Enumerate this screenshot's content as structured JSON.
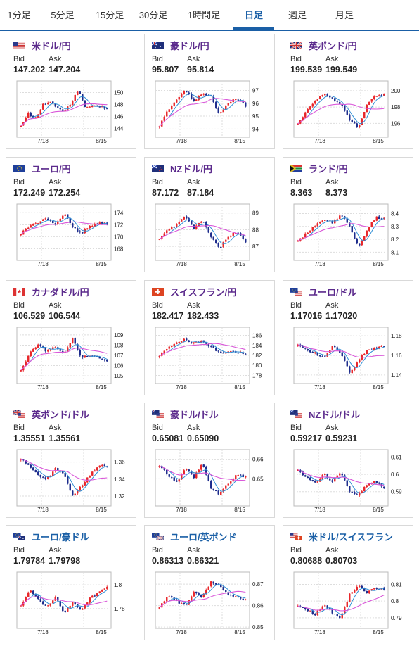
{
  "tabs": [
    {
      "label": "1分足",
      "active": false
    },
    {
      "label": "5分足",
      "active": false
    },
    {
      "label": "15分足",
      "active": false
    },
    {
      "label": "30分足",
      "active": false
    },
    {
      "label": "1時間足",
      "active": false
    },
    {
      "label": "日足",
      "active": true
    },
    {
      "label": "週足",
      "active": false
    },
    {
      "label": "月足",
      "active": false
    }
  ],
  "labels": {
    "bid": "Bid",
    "ask": "Ask"
  },
  "colors": {
    "up": "#e8262a",
    "down": "#1c2b8c",
    "ma_short": "#2f8fd6",
    "ma_long": "#d957d9",
    "accent": "#1a5fa6",
    "pair_purple": "#5b2a8c"
  },
  "pairs": [
    {
      "name": "米ドル/円",
      "flag": "flag-us",
      "bid": "147.202",
      "ask": "147.204",
      "y_ticks": [
        "150",
        "148",
        "146",
        "144"
      ],
      "x_ticks": [
        "7/18",
        "8/15"
      ],
      "chart_data": {
        "type": "line",
        "series": [
          {
            "values": [
              144.4,
              146.5,
              145.6,
              147.9,
              148.5,
              147.6,
              146.9,
              148.1,
              150.6,
              147.3,
              148.0,
              147.7,
              147.2
            ]
          }
        ],
        "ylim": [
          143.5,
          151
        ]
      }
    },
    {
      "name": "豪ドル/円",
      "flag": "flag-au",
      "bid": "95.807",
      "ask": "95.814",
      "y_ticks": [
        "97",
        "96",
        "95",
        "94"
      ],
      "x_ticks": [
        "7/18",
        "8/15"
      ],
      "chart_data": {
        "type": "line",
        "series": [
          {
            "values": [
              94.2,
              95.5,
              96.3,
              97.0,
              96.2,
              96.8,
              96.5,
              95.1,
              96.0,
              96.4,
              95.8
            ]
          }
        ],
        "ylim": [
          93.8,
          97.3
        ]
      }
    },
    {
      "name": "英ポンド/円",
      "flag": "flag-gb",
      "bid": "199.539",
      "ask": "199.549",
      "y_ticks": [
        "200",
        "198",
        "196"
      ],
      "x_ticks": [
        "7/18",
        "8/15"
      ],
      "chart_data": {
        "type": "line",
        "series": [
          {
            "values": [
              196.0,
              197.5,
              198.8,
              199.7,
              199.0,
              198.4,
              196.5,
              195.5,
              198.2,
              199.4,
              199.5
            ]
          }
        ],
        "ylim": [
          195,
          200.5
        ]
      }
    },
    {
      "name": "ユーロ/円",
      "flag": "flag-eu",
      "bid": "172.249",
      "ask": "172.254",
      "y_ticks": [
        "174",
        "172",
        "170",
        "168"
      ],
      "x_ticks": [
        "7/18",
        "8/15"
      ],
      "chart_data": {
        "type": "line",
        "series": [
          {
            "values": [
              170.5,
              171.8,
              172.4,
              173.0,
              172.2,
              173.9,
              171.5,
              170.6,
              171.8,
              172.3,
              172.2
            ]
          }
        ],
        "ylim": [
          167,
          174.5
        ]
      }
    },
    {
      "name": "NZドル/円",
      "flag": "flag-nz",
      "bid": "87.172",
      "ask": "87.184",
      "y_ticks": [
        "89",
        "88",
        "87"
      ],
      "x_ticks": [
        "7/18",
        "8/15"
      ],
      "chart_data": {
        "type": "line",
        "series": [
          {
            "values": [
              87.5,
              88.0,
              88.3,
              88.8,
              88.1,
              88.6,
              87.5,
              86.9,
              87.6,
              87.9,
              87.2
            ]
          }
        ],
        "ylim": [
          86.5,
          89.2
        ]
      }
    },
    {
      "name": "ランド/円",
      "flag": "flag-za",
      "bid": "8.363",
      "ask": "8.373",
      "y_ticks": [
        "8.4",
        "8.3",
        "8.2",
        "8.1"
      ],
      "x_ticks": [
        "7/18",
        "8/15"
      ],
      "chart_data": {
        "type": "line",
        "series": [
          {
            "values": [
              8.18,
              8.25,
              8.31,
              8.36,
              8.33,
              8.39,
              8.31,
              8.14,
              8.27,
              8.37,
              8.36
            ]
          }
        ],
        "ylim": [
          8.08,
          8.43
        ]
      }
    },
    {
      "name": "カナダドル/円",
      "flag": "flag-ca",
      "bid": "106.529",
      "ask": "106.544",
      "y_ticks": [
        "109",
        "108",
        "107",
        "106",
        "105"
      ],
      "x_ticks": [
        "7/18",
        "8/15"
      ],
      "chart_data": {
        "type": "line",
        "series": [
          {
            "values": [
              105.5,
              107.2,
              108.0,
              107.4,
              107.9,
              107.2,
              108.6,
              106.8,
              107.0,
              106.8,
              106.5
            ]
          }
        ],
        "ylim": [
          104.8,
          109.2
        ]
      }
    },
    {
      "name": "スイスフラン/円",
      "flag": "flag-ch",
      "bid": "182.417",
      "ask": "182.433",
      "y_ticks": [
        "186",
        "184",
        "182",
        "180",
        "178"
      ],
      "x_ticks": [
        "7/18",
        "8/15"
      ],
      "chart_data": {
        "type": "line",
        "series": [
          {
            "values": [
              181.8,
              183.5,
              184.6,
              185.2,
              184.4,
              184.9,
              183.6,
              182.4,
              182.8,
              182.6,
              182.4
            ]
          }
        ],
        "ylim": [
          177.5,
          186.5
        ]
      }
    },
    {
      "name": "ユーロ/ドル",
      "flag": "flag-euus",
      "bid": "1.17016",
      "ask": "1.17020",
      "y_ticks": [
        "1.18",
        "1.16",
        "1.14"
      ],
      "x_ticks": [
        "7/18",
        "8/15"
      ],
      "chart_data": {
        "type": "line",
        "series": [
          {
            "values": [
              1.171,
              1.166,
              1.162,
              1.158,
              1.17,
              1.163,
              1.142,
              1.155,
              1.165,
              1.168,
              1.17
            ]
          }
        ],
        "ylim": [
          1.137,
          1.183
        ]
      }
    },
    {
      "name": "英ポンド/ドル",
      "flag": "flag-gbus",
      "bid": "1.35551",
      "ask": "1.35561",
      "y_ticks": [
        "1.36",
        "1.34",
        "1.32"
      ],
      "x_ticks": [
        "7/18",
        "8/15"
      ],
      "chart_data": {
        "type": "line",
        "series": [
          {
            "values": [
              1.364,
              1.355,
              1.345,
              1.34,
              1.352,
              1.346,
              1.32,
              1.332,
              1.345,
              1.356,
              1.355
            ]
          }
        ],
        "ylim": [
          1.315,
          1.368
        ]
      }
    },
    {
      "name": "豪ドル/ドル",
      "flag": "flag-auus",
      "bid": "0.65081",
      "ask": "0.65090",
      "y_ticks": [
        "0.66",
        "0.65"
      ],
      "x_ticks": [
        "7/18",
        "8/15"
      ],
      "chart_data": {
        "type": "line",
        "series": [
          {
            "values": [
              0.657,
              0.652,
              0.648,
              0.655,
              0.651,
              0.658,
              0.645,
              0.642,
              0.648,
              0.652,
              0.651
            ]
          }
        ],
        "ylim": [
          0.639,
          0.662
        ]
      }
    },
    {
      "name": "NZドル/ドル",
      "flag": "flag-nzus",
      "bid": "0.59217",
      "ask": "0.59231",
      "y_ticks": [
        "0.61",
        "0.6",
        "0.59"
      ],
      "x_ticks": [
        "7/18",
        "8/15"
      ],
      "chart_data": {
        "type": "line",
        "series": [
          {
            "values": [
              0.602,
              0.598,
              0.595,
              0.6,
              0.596,
              0.601,
              0.59,
              0.588,
              0.594,
              0.596,
              0.592
            ]
          }
        ],
        "ylim": [
          0.585,
          0.611
        ]
      }
    },
    {
      "name": "ユーロ/豪ドル",
      "flag": "flag-euau",
      "bid": "1.79784",
      "ask": "1.79798",
      "y_ticks": [
        "1.8",
        "1.78"
      ],
      "x_ticks": [
        "7/18",
        "8/15"
      ],
      "chart_data": {
        "type": "line",
        "series": [
          {
            "values": [
              1.782,
              1.796,
              1.788,
              1.781,
              1.79,
              1.776,
              1.785,
              1.778,
              1.789,
              1.793,
              1.798
            ]
          }
        ],
        "ylim": [
          1.768,
          1.806
        ]
      }
    },
    {
      "name": "ユーロ/英ポンド",
      "flag": "flag-eugb",
      "bid": "0.86313",
      "ask": "0.86321",
      "y_ticks": [
        "0.87",
        "0.86",
        "0.85"
      ],
      "x_ticks": [
        "7/18",
        "8/15"
      ],
      "chart_data": {
        "type": "line",
        "series": [
          {
            "values": [
              0.859,
              0.865,
              0.862,
              0.86,
              0.866,
              0.864,
              0.871,
              0.869,
              0.865,
              0.864,
              0.863
            ]
          }
        ],
        "ylim": [
          0.852,
          0.873
        ]
      }
    },
    {
      "name": "米ドル/スイスフラン",
      "flag": "flag-usch",
      "bid": "0.80688",
      "ask": "0.80703",
      "y_ticks": [
        "0.81",
        "0.8",
        "0.79"
      ],
      "x_ticks": [
        "7/18",
        "8/15"
      ],
      "chart_data": {
        "type": "line",
        "series": [
          {
            "values": [
              0.797,
              0.795,
              0.792,
              0.798,
              0.793,
              0.79,
              0.804,
              0.81,
              0.805,
              0.808,
              0.807
            ]
          }
        ],
        "ylim": [
          0.787,
          0.814
        ]
      }
    }
  ]
}
